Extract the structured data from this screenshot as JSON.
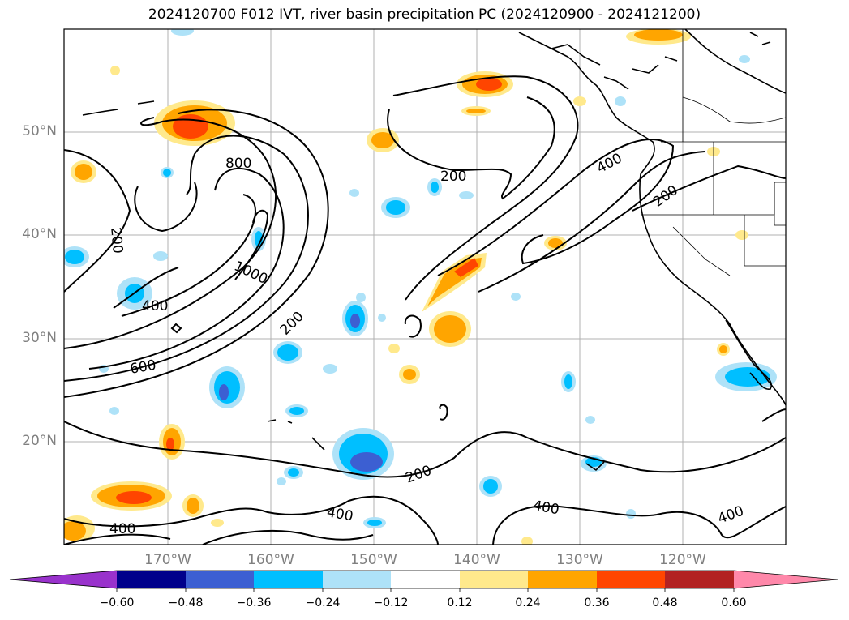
{
  "title": "2024120700 F012 IVT, river basin precipitation PC (2024120900 - 2024121200)",
  "lat_labels": [
    "50°N",
    "40°N",
    "30°N",
    "20°N"
  ],
  "lon_labels": [
    "170°W",
    "160°W",
    "150°W",
    "140°W",
    "130°W",
    "120°W"
  ],
  "contour_labels": [
    "800",
    "200",
    "400",
    "200",
    "200",
    "400",
    "1000",
    "200",
    "600",
    "200",
    "400",
    "400",
    "400",
    "400"
  ],
  "colorbar": {
    "ticks": [
      "−0.60",
      "−0.48",
      "−0.36",
      "−0.24",
      "−0.12",
      "0.12",
      "0.24",
      "0.36",
      "0.48",
      "0.60"
    ],
    "colors": [
      "#9932cc",
      "#00008b",
      "#3c5fd2",
      "#00bfff",
      "#aee2f8",
      "#ffffff",
      "#ffe98c",
      "#ffa500",
      "#ff4500",
      "#b22222",
      "#ff88aa"
    ]
  }
}
